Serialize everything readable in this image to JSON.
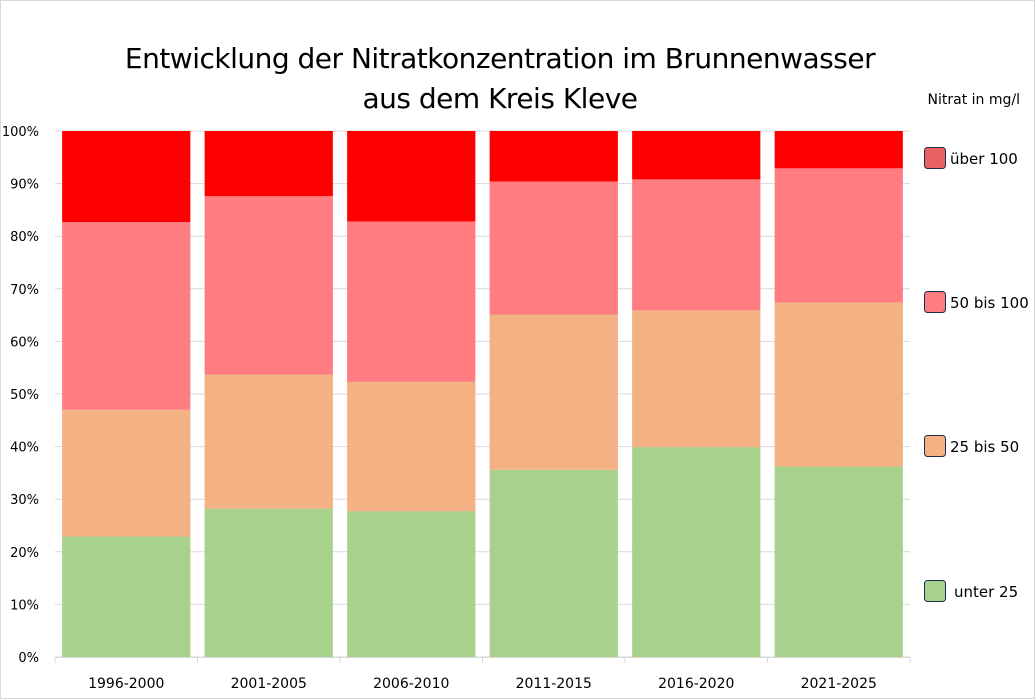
{
  "chart_data": {
    "type": "bar",
    "stacked": "percent",
    "title": [
      "Entwicklung der Nitratkonzentration im Brunnenwasser",
      "aus dem Kreis Kleve"
    ],
    "legend_title": "Nitrat in mg/l",
    "legend_position": "right",
    "categories": [
      "1996-2000",
      "2001-2005",
      "2006-2010",
      "2011-2015",
      "2016-2020",
      "2021-2025"
    ],
    "ylim": [
      0,
      100
    ],
    "yticks": [
      "0%",
      "10%",
      "20%",
      "30%",
      "40%",
      "50%",
      "60%",
      "70%",
      "80%",
      "90%",
      "100%"
    ],
    "grid": true,
    "series": [
      {
        "name": "unter 25",
        "color": "#A9D18E",
        "legend_color": "#A9D18E",
        "values": [
          22.9,
          28.2,
          27.7,
          35.6,
          39.9,
          36.2
        ]
      },
      {
        "name": "25 bis 50",
        "color": "#F4B183",
        "legend_color": "#F4B183",
        "values": [
          24.1,
          25.5,
          24.6,
          29.5,
          26.0,
          31.2
        ]
      },
      {
        "name": "50 bis 100",
        "color": "#FF7C80",
        "legend_color": "#FF7C80",
        "values": [
          35.7,
          33.9,
          30.5,
          25.3,
          24.9,
          25.5
        ]
      },
      {
        "name": "über 100",
        "color": "#FF0000",
        "legend_color": "#E86262",
        "values": [
          17.3,
          12.4,
          17.2,
          9.6,
          9.2,
          7.1
        ]
      }
    ]
  }
}
